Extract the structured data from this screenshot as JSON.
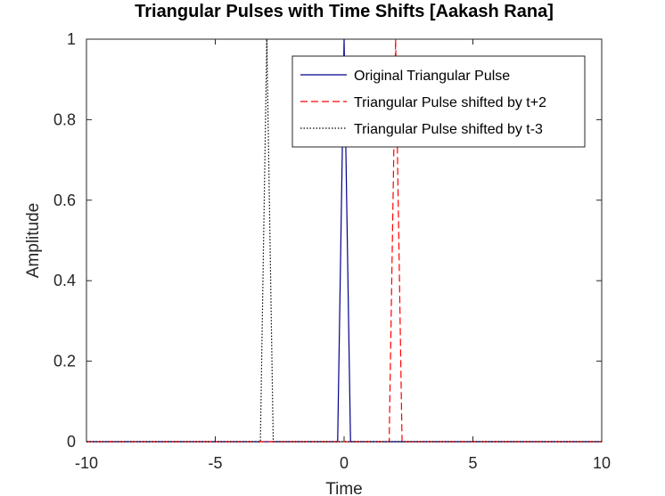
{
  "chart_data": {
    "type": "line",
    "title": "Triangular Pulses with Time Shifts [Aakash Rana]",
    "xlabel": "Time",
    "ylabel": "Amplitude",
    "xlim": [
      -10,
      10
    ],
    "ylim": [
      0,
      1
    ],
    "xticks": [
      "-10",
      "-5",
      "0",
      "5",
      "10"
    ],
    "yticks": [
      "0",
      "0.2",
      "0.4",
      "0.6",
      "0.8",
      "1"
    ],
    "grid": false,
    "legend_position": "top-right",
    "series": [
      {
        "name": "Original Triangular Pulse",
        "color": "#00008B",
        "style": "solid",
        "x": [
          -10,
          -0.25,
          0,
          0.25,
          10
        ],
        "y": [
          0,
          0,
          1,
          0,
          0
        ]
      },
      {
        "name": "Triangular Pulse shifted by t+2",
        "color": "#FF0000",
        "style": "dashed",
        "x": [
          -10,
          1.75,
          2,
          2.25,
          10
        ],
        "y": [
          0,
          0,
          1,
          0,
          0
        ]
      },
      {
        "name": "Triangular Pulse shifted by t-3",
        "color": "#000000",
        "style": "dotted",
        "x": [
          -10,
          -3.25,
          -3,
          -2.75,
          10
        ],
        "y": [
          0,
          0,
          1,
          0,
          0
        ]
      }
    ]
  }
}
